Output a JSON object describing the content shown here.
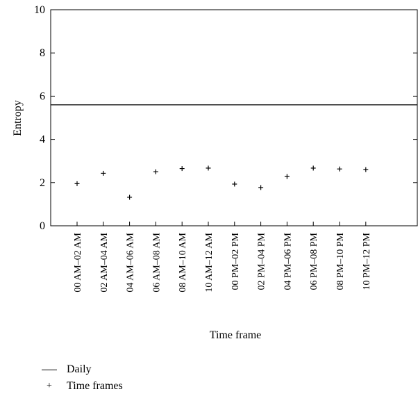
{
  "chart_data": {
    "type": "scatter",
    "title": "",
    "xlabel": "Time frame",
    "ylabel": "Entropy",
    "ylim": [
      0,
      10
    ],
    "yticks": [
      0,
      2,
      4,
      6,
      8,
      10
    ],
    "categories": [
      "00 AM–02 AM",
      "02 AM–04 AM",
      "04 AM–06 AM",
      "06 AM–08 AM",
      "08 AM–10 AM",
      "10 AM–12 AM",
      "00 PM–02 PM",
      "02 PM–04 PM",
      "04 PM–06 PM",
      "06 PM–08 PM",
      "08 PM–10 PM",
      "10 PM–12 PM"
    ],
    "series": [
      {
        "name": "Time frames",
        "marker": "plus",
        "values": [
          1.95,
          2.43,
          1.32,
          2.5,
          2.65,
          2.67,
          1.93,
          1.77,
          2.28,
          2.67,
          2.63,
          2.6
        ]
      }
    ],
    "reference_lines": [
      {
        "name": "Daily",
        "value": 5.6,
        "style": "solid"
      }
    ],
    "legend": {
      "position": "bottom-left",
      "entries": [
        {
          "label": "Daily",
          "symbol": "line"
        },
        {
          "label": "Time frames",
          "symbol": "plus"
        }
      ]
    },
    "grid": false
  }
}
